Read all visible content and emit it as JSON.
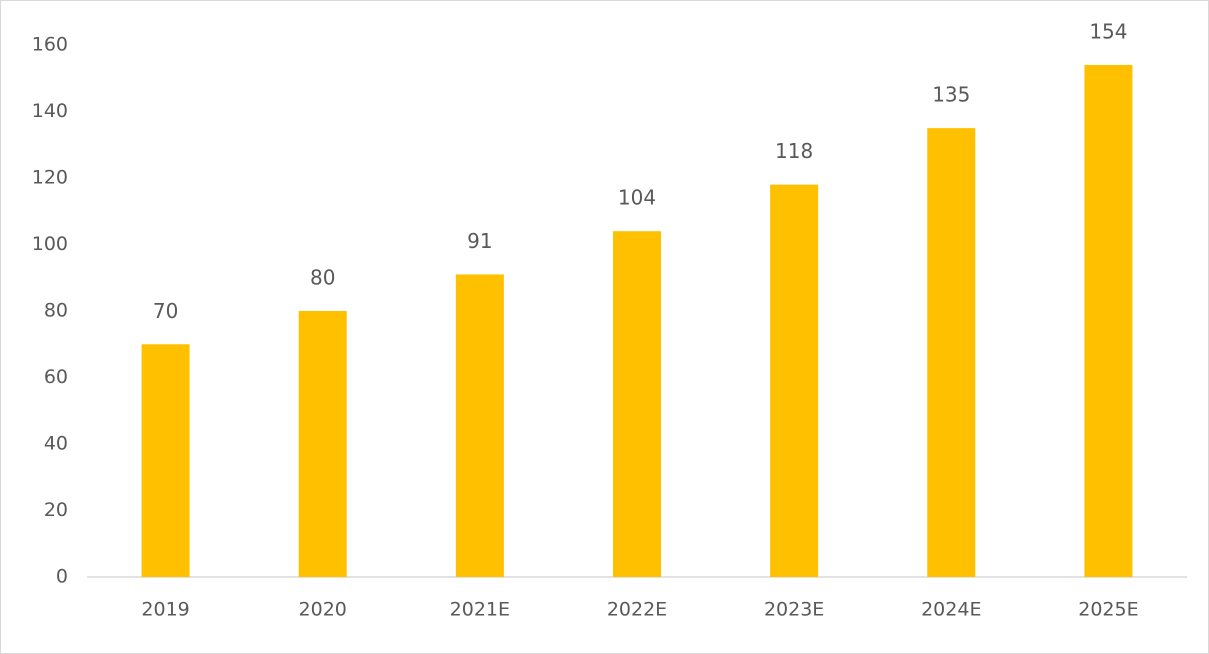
{
  "chart_data": {
    "type": "bar",
    "categories": [
      "2019",
      "2020",
      "2021E",
      "2022E",
      "2023E",
      "2024E",
      "2025E"
    ],
    "values": [
      70,
      80,
      91,
      104,
      118,
      135,
      154
    ],
    "color": "#ffc000",
    "ylim": [
      0,
      160
    ],
    "yticks": [
      0,
      20,
      40,
      60,
      80,
      100,
      120,
      140,
      160
    ],
    "grid": false
  }
}
